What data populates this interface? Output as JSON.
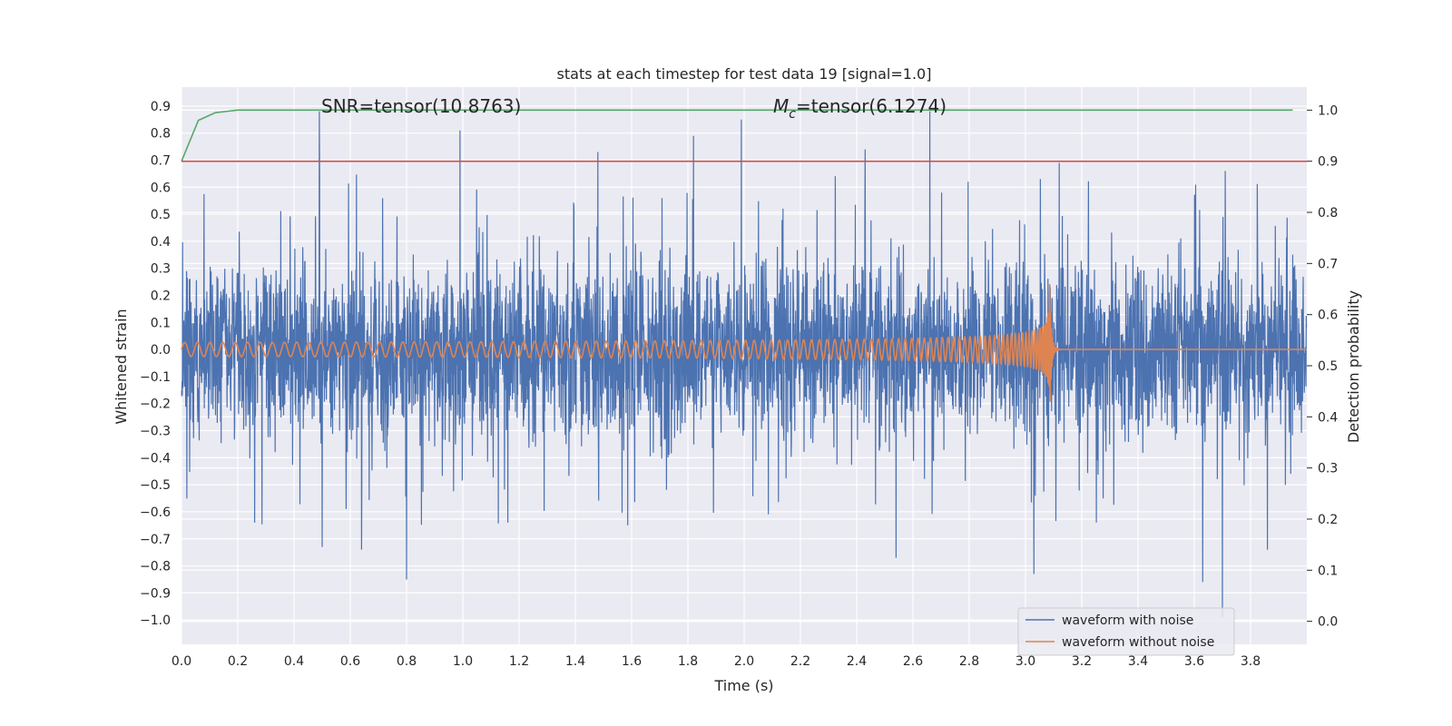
{
  "chart_data": {
    "type": "line",
    "title": "stats at each timestep for test data 19 [signal=1.0]",
    "xlabel": "Time (s)",
    "ylabel": "Whitened strain",
    "y2label": "Detection probability",
    "xlim": [
      0.0,
      4.0
    ],
    "ylim": [
      -1.09,
      0.97
    ],
    "y2lim": [
      -0.045,
      1.045
    ],
    "x_ticks": [
      0.0,
      0.2,
      0.4,
      0.6,
      0.8,
      1.0,
      1.2,
      1.4,
      1.6,
      1.8,
      2.0,
      2.2,
      2.4,
      2.6,
      2.8,
      3.0,
      3.2,
      3.4,
      3.6,
      3.8
    ],
    "x_tick_labels": [
      "0.0",
      "0.2",
      "0.4",
      "0.6",
      "0.8",
      "1.0",
      "1.2",
      "1.4",
      "1.6",
      "1.8",
      "2.0",
      "2.2",
      "2.4",
      "2.6",
      "2.8",
      "3.0",
      "3.2",
      "3.4",
      "3.6",
      "3.8"
    ],
    "y_ticks": [
      0.9,
      0.8,
      0.7,
      0.6,
      0.5,
      0.4,
      0.3,
      0.2,
      0.1,
      0.0,
      -0.1,
      -0.2,
      -0.3,
      -0.4,
      -0.5,
      -0.6,
      -0.7,
      -0.8,
      -0.9,
      -1.0
    ],
    "y_tick_labels": [
      "0.9",
      "0.8",
      "0.7",
      "0.6",
      "0.5",
      "0.4",
      "0.3",
      "0.2",
      "0.1",
      "0.0",
      "−0.1",
      "−0.2",
      "−0.3",
      "−0.4",
      "−0.5",
      "−0.6",
      "−0.7",
      "−0.8",
      "−0.9",
      "−1.0"
    ],
    "y2_ticks": [
      1.0,
      0.9,
      0.8,
      0.7,
      0.6,
      0.5,
      0.4,
      0.3,
      0.2,
      0.1,
      0.0
    ],
    "y2_tick_labels": [
      "1.0",
      "0.9",
      "0.8",
      "0.7",
      "0.6",
      "0.5",
      "0.4",
      "0.3",
      "0.2",
      "0.1",
      "0.0"
    ],
    "grid": true,
    "legend_position": "lower-right",
    "annotations": {
      "snr": "SNR=tensor(10.8763)",
      "mc_symbol": "M",
      "mc_subscript": "c",
      "mc_value": "=tensor(6.1274)"
    },
    "series": [
      {
        "name": "waveform with noise",
        "color": "#4c72b0",
        "axis": "left",
        "kind": "noise",
        "amplitude_typical": 0.45,
        "peaks": [
          {
            "x": 0.49,
            "y": 0.88
          },
          {
            "x": 0.5,
            "y": -0.73
          },
          {
            "x": 0.64,
            "y": -0.74
          },
          {
            "x": 0.8,
            "y": -0.85
          },
          {
            "x": 0.99,
            "y": 0.81
          },
          {
            "x": 1.48,
            "y": 0.73
          },
          {
            "x": 1.82,
            "y": 0.79
          },
          {
            "x": 1.99,
            "y": 0.85
          },
          {
            "x": 2.43,
            "y": 0.74
          },
          {
            "x": 2.54,
            "y": -0.77
          },
          {
            "x": 2.66,
            "y": 0.88
          },
          {
            "x": 3.03,
            "y": -0.83
          },
          {
            "x": 3.12,
            "y": 0.69
          },
          {
            "x": 3.63,
            "y": -0.86
          },
          {
            "x": 3.7,
            "y": -0.99
          },
          {
            "x": 3.71,
            "y": 0.66
          },
          {
            "x": 0.26,
            "y": -0.64
          },
          {
            "x": 1.16,
            "y": -0.64
          },
          {
            "x": 3.86,
            "y": -0.74
          }
        ]
      },
      {
        "name": "waveform without noise",
        "color": "#dd8452",
        "axis": "left",
        "kind": "chirp",
        "t_merger": 3.085,
        "f_start": 22,
        "amp_start": 0.026,
        "amp_peak": 0.3
      },
      {
        "name": "",
        "color": "#55a868",
        "axis": "right",
        "x": [
          0.0,
          0.06,
          0.12,
          0.2,
          0.5,
          1.0,
          2.0,
          3.0,
          3.95
        ],
        "y": [
          0.9,
          0.98,
          0.995,
          1.0,
          1.0,
          1.0,
          1.0,
          1.0,
          1.0
        ]
      },
      {
        "name": "",
        "color": "#c44e52",
        "axis": "right",
        "x": [
          0.0,
          4.0
        ],
        "y": [
          0.9,
          0.9
        ]
      }
    ]
  }
}
